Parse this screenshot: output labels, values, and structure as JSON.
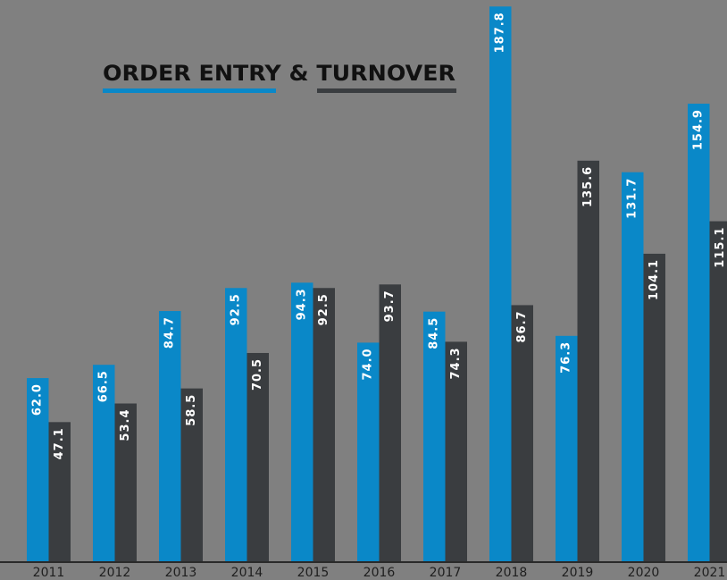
{
  "chart_data": {
    "type": "bar",
    "title": "ORDER ENTRY & TURNOVER",
    "categories": [
      "2011",
      "2012",
      "2013",
      "2014",
      "2015",
      "2016",
      "2017",
      "2018",
      "2019",
      "2020",
      "2021"
    ],
    "series": [
      {
        "color": "#0a88c8",
        "values": [
          62.0,
          66.5,
          84.7,
          92.5,
          94.3,
          74.0,
          84.5,
          187.8,
          76.3,
          131.7,
          154.9
        ],
        "value_labels": [
          "62.0",
          "66.5",
          "84.7",
          "92.5",
          "94.3",
          "74.0",
          "84.5",
          "187.8",
          "76.3",
          "131.7",
          "154.9"
        ]
      },
      {
        "color": "#3a3d40",
        "values": [
          47.1,
          53.4,
          58.5,
          70.5,
          92.5,
          93.7,
          74.3,
          86.7,
          135.6,
          104.1,
          115.1
        ],
        "value_labels": [
          "47.1",
          "53.4",
          "58.5",
          "70.5",
          "92.5",
          "93.7",
          "74.3",
          "86.7",
          "135.6",
          "104.1",
          "115.1"
        ]
      }
    ],
    "ylim": [
      0,
      190
    ]
  }
}
